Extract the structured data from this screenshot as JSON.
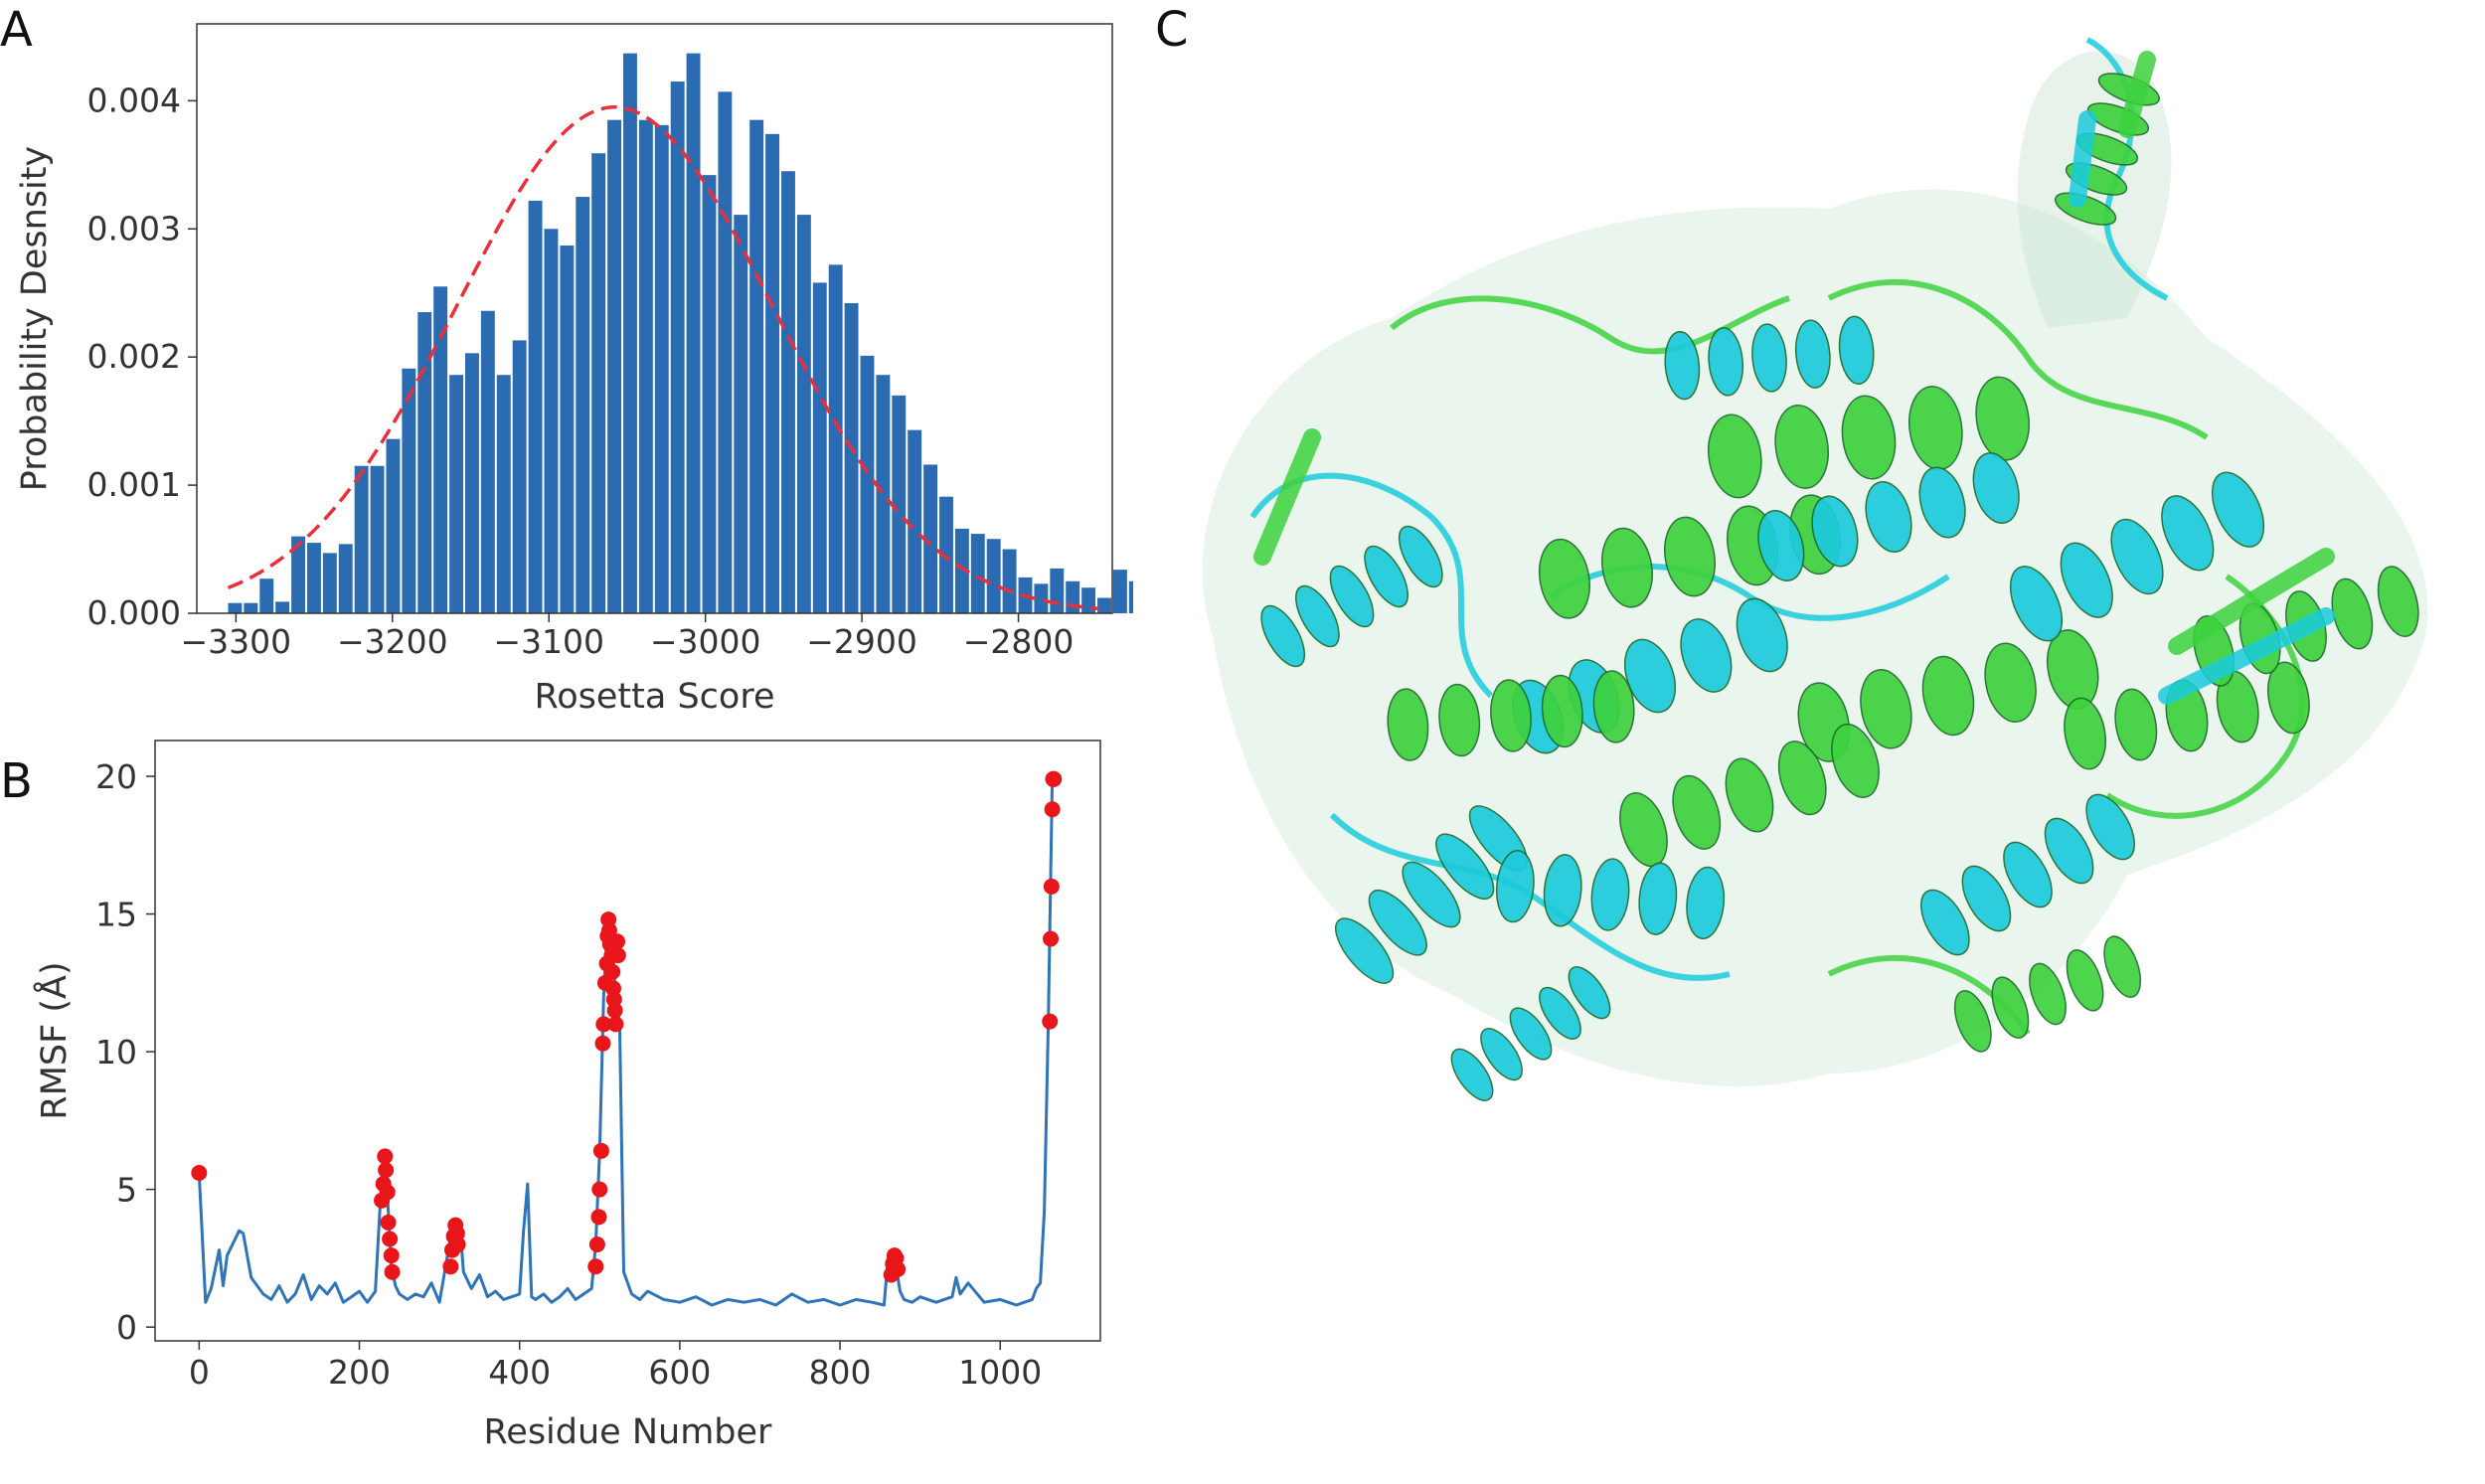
{
  "panels": {
    "a": "A",
    "b": "B",
    "c": "C"
  },
  "colors": {
    "bar": "#2b6bb2",
    "fit": "#e8303a",
    "line": "#2f74b8",
    "marker": "#e8161b",
    "helix_green": "#3ed23e",
    "helix_cyan": "#1ccbdc",
    "axis": "#333333"
  },
  "chart_data": [
    {
      "type": "bar",
      "xlabel": "Rosetta Score",
      "ylabel": "Probability Desnsity",
      "xlim": [
        -3325,
        -2740
      ],
      "ylim": [
        0,
        0.0046
      ],
      "xticks": [
        -3300,
        -3200,
        -3100,
        -3000,
        -2900,
        -2800
      ],
      "xtick_labels": [
        "−3300",
        "−3200",
        "−3100",
        "−3000",
        "−2900",
        "−2800"
      ],
      "yticks": [
        0,
        0.001,
        0.002,
        0.003,
        0.004
      ],
      "ytick_labels": [
        "0.000",
        "0.001",
        "0.002",
        "0.003",
        "0.004"
      ],
      "bin_width": 10.1,
      "bins_start": -3305,
      "values": [
        8e-05,
        8e-05,
        0.00027,
        9e-05,
        0.0006,
        0.00055,
        0.00047,
        0.00054,
        0.00115,
        0.00115,
        0.00136,
        0.00191,
        0.00235,
        0.00255,
        0.00186,
        0.00203,
        0.00236,
        0.00186,
        0.00213,
        0.00322,
        0.003,
        0.00287,
        0.00325,
        0.00359,
        0.00385,
        0.00437,
        0.00385,
        0.00381,
        0.00415,
        0.00437,
        0.00342,
        0.00407,
        0.00311,
        0.00385,
        0.00374,
        0.00345,
        0.00311,
        0.00258,
        0.00272,
        0.00242,
        0.00201,
        0.00186,
        0.0017,
        0.00143,
        0.00116,
        0.00091,
        0.00066,
        0.00062,
        0.00058,
        0.0005,
        0.00028,
        0.00023,
        0.00035,
        0.00025,
        0.0002,
        0.00012,
        0.00034,
        0.00025,
        0.0,
        0.0,
        0.0,
        0.0,
        0.0001,
        8e-05,
        0.0,
        0.00026
      ],
      "fit": {
        "type": "normal",
        "mean": -3058,
        "std": 101,
        "style": "dashed"
      }
    },
    {
      "type": "line",
      "xlabel": "Residue Number",
      "ylabel": "RMSF (Å)",
      "xlim": [
        -55,
        1125
      ],
      "ylim": [
        -0.5,
        21.3
      ],
      "xticks": [
        0,
        200,
        400,
        600,
        800,
        1000
      ],
      "xtick_labels": [
        "0",
        "200",
        "400",
        "600",
        "800",
        "1000"
      ],
      "yticks": [
        0,
        5,
        10,
        15,
        20
      ],
      "ytick_labels": [
        "0",
        "5",
        "10",
        "15",
        "20"
      ],
      "x": [
        0,
        8,
        15,
        25,
        30,
        35,
        45,
        50,
        55,
        60,
        65,
        70,
        80,
        90,
        100,
        110,
        120,
        130,
        140,
        150,
        160,
        170,
        180,
        190,
        200,
        210,
        220,
        228,
        232,
        236,
        240,
        245,
        250,
        260,
        270,
        280,
        290,
        300,
        310,
        316,
        320,
        326,
        330,
        340,
        350,
        360,
        370,
        380,
        390,
        400,
        405,
        410,
        415,
        420,
        430,
        440,
        450,
        460,
        470,
        480,
        490,
        495,
        500,
        505,
        510,
        515,
        520,
        525,
        530,
        540,
        550,
        560,
        580,
        600,
        620,
        640,
        660,
        680,
        700,
        720,
        740,
        760,
        780,
        800,
        820,
        840,
        855,
        860,
        865,
        870,
        875,
        880,
        890,
        900,
        920,
        940,
        945,
        950,
        960,
        980,
        1000,
        1020,
        1040,
        1045,
        1050,
        1055,
        1060,
        1065
      ],
      "y": [
        5.6,
        0.9,
        1.4,
        2.8,
        1.5,
        2.6,
        3.2,
        3.5,
        3.4,
        2.6,
        1.8,
        1.6,
        1.2,
        1.0,
        1.5,
        0.9,
        1.2,
        1.9,
        1.0,
        1.5,
        1.2,
        1.6,
        0.9,
        1.1,
        1.3,
        0.9,
        1.3,
        5.5,
        6.2,
        4.3,
        2.2,
        1.5,
        1.2,
        1.0,
        1.2,
        1.1,
        1.6,
        0.9,
        2.6,
        3.7,
        2.8,
        3.5,
        2.0,
        1.4,
        1.9,
        1.1,
        1.3,
        1.0,
        1.1,
        1.2,
        3.5,
        5.2,
        1.1,
        1.0,
        1.2,
        0.9,
        1.1,
        1.4,
        1.0,
        1.2,
        1.4,
        3.0,
        6.4,
        12.0,
        14.8,
        14.4,
        12.0,
        11.0,
        2.0,
        1.2,
        1.0,
        1.3,
        1.0,
        0.9,
        1.1,
        0.8,
        1.0,
        0.9,
        1.0,
        0.8,
        1.2,
        0.9,
        1.0,
        0.8,
        1.0,
        0.9,
        0.8,
        2.5,
        2.6,
        2.2,
        1.3,
        1.0,
        0.9,
        1.1,
        0.9,
        1.1,
        1.8,
        1.2,
        1.6,
        0.9,
        1.0,
        0.8,
        1.0,
        1.4,
        1.6,
        4.2,
        11.0,
        19.9
      ],
      "highlighted_points": {
        "x": [
          0,
          228,
          230,
          232,
          233,
          235,
          236,
          238,
          240,
          241,
          314,
          316,
          318,
          320,
          322,
          323,
          495,
          497,
          499,
          500,
          502,
          504,
          505,
          507,
          509,
          510,
          511,
          512,
          513,
          515,
          516,
          517,
          518,
          519,
          520,
          522,
          523,
          864,
          866,
          868,
          870,
          872,
          1062,
          1063,
          1064,
          1065,
          1066,
          1067
        ],
        "y": [
          5.6,
          4.6,
          5.2,
          6.2,
          5.7,
          4.9,
          3.8,
          3.2,
          2.6,
          2.0,
          2.2,
          2.8,
          3.3,
          3.7,
          3.4,
          3.0,
          2.2,
          3.0,
          4.0,
          5.0,
          6.4,
          10.3,
          11.0,
          12.5,
          13.2,
          14.2,
          14.8,
          14.4,
          13.9,
          13.5,
          12.9,
          12.3,
          11.9,
          11.5,
          11.0,
          14.0,
          13.5,
          1.9,
          2.3,
          2.6,
          2.5,
          2.1,
          11.1,
          14.1,
          16.0,
          18.8,
          19.9,
          19.9
        ]
      }
    }
  ]
}
